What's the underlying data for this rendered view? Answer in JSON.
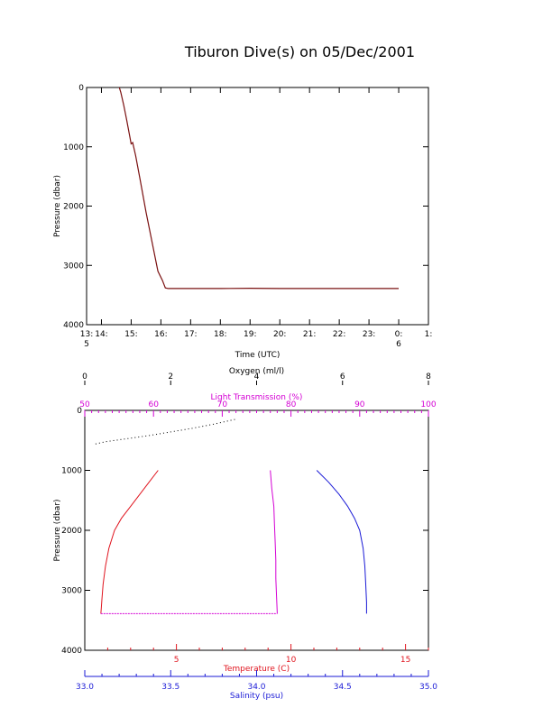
{
  "title": "Tiburon Dive(s) on 05/Dec/2001",
  "colors": {
    "black": "#000000",
    "temperature": "#e0141e",
    "salinity": "#1a1ad6",
    "oxygen": "#000000",
    "transmission": "#d400d4",
    "pressure_trace": "#7a1010"
  },
  "chart_data": [
    {
      "type": "line",
      "title": "Tiburon Dive(s) on 05/Dec/2001",
      "xlabel": "Time (UTC)",
      "ylabel": "Pressure (dbar)",
      "xlim": [
        13.5,
        25.0
      ],
      "ylim": [
        4000,
        0
      ],
      "x_ticks": [
        {
          "v": 13.5,
          "label": "13:",
          "sub": "5"
        },
        {
          "v": 14,
          "label": "14:"
        },
        {
          "v": 15,
          "label": "15:"
        },
        {
          "v": 16,
          "label": "16:"
        },
        {
          "v": 17,
          "label": "17:"
        },
        {
          "v": 18,
          "label": "18:"
        },
        {
          "v": 19,
          "label": "19:"
        },
        {
          "v": 20,
          "label": "20:"
        },
        {
          "v": 21,
          "label": "21:"
        },
        {
          "v": 22,
          "label": "22:"
        },
        {
          "v": 23,
          "label": "23:"
        },
        {
          "v": 24,
          "label": "0:",
          "sub": "6"
        },
        {
          "v": 25,
          "label": "1:"
        }
      ],
      "y_ticks": [
        0,
        1000,
        2000,
        3000,
        4000
      ],
      "series": [
        {
          "x": [
            14.6,
            14.65,
            14.75,
            14.85,
            14.95,
            15.0,
            15.05,
            15.15,
            15.3,
            15.5,
            15.7,
            15.9,
            16.05,
            16.15,
            16.25,
            16.5,
            17,
            18,
            19,
            20,
            21,
            22,
            23,
            24
          ],
          "y": [
            0,
            80,
            300,
            550,
            820,
            950,
            930,
            1150,
            1550,
            2100,
            2600,
            3100,
            3250,
            3380,
            3390,
            3390,
            3390,
            3390,
            3385,
            3390,
            3390,
            3390,
            3390,
            3390
          ]
        }
      ]
    },
    {
      "type": "scatter",
      "ylabel": "Pressure (dbar)",
      "ylim": [
        4000,
        0
      ],
      "y_ticks": [
        0,
        1000,
        2000,
        3000,
        4000
      ],
      "axes": {
        "oxygen": {
          "label": "Oxygen (ml/l)",
          "lim": [
            0,
            8
          ],
          "ticks": [
            0,
            2,
            4,
            6,
            8
          ]
        },
        "transmission": {
          "label": "Light Transmission (%)",
          "lim": [
            50,
            100
          ],
          "ticks": [
            50,
            60,
            70,
            80,
            90,
            100
          ]
        },
        "temperature": {
          "label": "Temperature (C)",
          "lim": [
            1,
            16
          ],
          "ticks": [
            5,
            10,
            15
          ]
        },
        "salinity": {
          "label": "Salinity (psu)",
          "lim": [
            33.0,
            35.0
          ],
          "ticks": [
            "33.0",
            "33.5",
            "34.0",
            "34.5",
            "35.0"
          ]
        }
      },
      "series": [
        {
          "name": "Temperature",
          "axis": "temperature",
          "x": [
            4.2,
            3.8,
            3.4,
            3.0,
            2.6,
            2.3,
            2.05,
            1.9,
            1.8,
            1.75,
            1.72,
            1.7
          ],
          "y": [
            1000,
            1200,
            1400,
            1600,
            1800,
            2000,
            2300,
            2600,
            2900,
            3150,
            3300,
            3390
          ]
        },
        {
          "name": "Salinity",
          "axis": "salinity",
          "x": [
            34.35,
            34.42,
            34.48,
            34.53,
            34.57,
            34.6,
            34.62,
            34.63,
            34.635,
            34.64,
            34.64
          ],
          "y": [
            1000,
            1200,
            1400,
            1600,
            1800,
            2000,
            2300,
            2600,
            2900,
            3200,
            3390
          ]
        },
        {
          "name": "Light Transmission",
          "axis": "transmission",
          "x": [
            77.0,
            77.2,
            77.5,
            77.6,
            77.7,
            77.8,
            77.8,
            77.9,
            78.0
          ],
          "y": [
            1000,
            1300,
            1600,
            1900,
            2200,
            2500,
            2800,
            3100,
            3390
          ]
        },
        {
          "name": "Oxygen",
          "axis": "oxygen",
          "x": [
            0.25,
            0.5,
            1.0,
            1.5,
            2.0,
            2.5,
            3.0,
            3.5
          ],
          "y": [
            560,
            520,
            470,
            420,
            360,
            300,
            230,
            150
          ]
        }
      ]
    }
  ]
}
